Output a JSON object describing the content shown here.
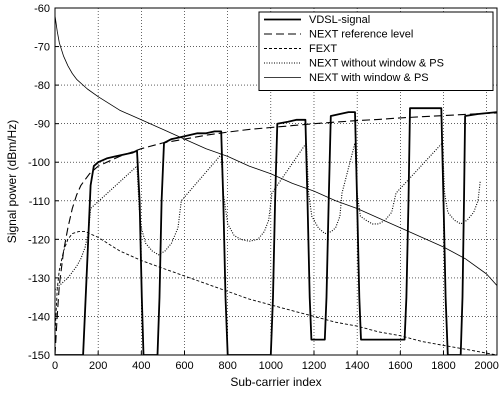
{
  "chart_data": {
    "type": "line",
    "title": "",
    "xlabel": "Sub-carrier index",
    "ylabel": "Signal power (dBm/Hz)",
    "xlim": [
      0,
      2048
    ],
    "ylim": [
      -150,
      -60
    ],
    "x_ticks": [
      0,
      200,
      400,
      600,
      800,
      1000,
      1200,
      1400,
      1600,
      1800,
      2000
    ],
    "y_ticks": [
      -150,
      -140,
      -130,
      -120,
      -110,
      -100,
      -90,
      -80,
      -70,
      -60
    ],
    "grid": true,
    "legend_position": "top-right",
    "series": [
      {
        "name": "VDSL-signal",
        "style": "solid-thick",
        "points": [
          [
            0,
            -150
          ],
          [
            130,
            -150
          ],
          [
            150,
            -125
          ],
          [
            165,
            -106
          ],
          [
            180,
            -101
          ],
          [
            200,
            -100
          ],
          [
            240,
            -99
          ],
          [
            280,
            -98.5
          ],
          [
            320,
            -98
          ],
          [
            360,
            -97.5
          ],
          [
            380,
            -97
          ],
          [
            392,
            -110
          ],
          [
            402,
            -135
          ],
          [
            410,
            -150
          ],
          [
            475,
            -150
          ],
          [
            484,
            -135
          ],
          [
            494,
            -110
          ],
          [
            505,
            -95
          ],
          [
            540,
            -94
          ],
          [
            580,
            -93.5
          ],
          [
            620,
            -93
          ],
          [
            660,
            -92.5
          ],
          [
            700,
            -92.5
          ],
          [
            740,
            -92
          ],
          [
            770,
            -92
          ],
          [
            780,
            -110
          ],
          [
            790,
            -135
          ],
          [
            800,
            -150
          ],
          [
            1000,
            -150
          ],
          [
            1010,
            -135
          ],
          [
            1020,
            -110
          ],
          [
            1030,
            -90
          ],
          [
            1080,
            -89.5
          ],
          [
            1120,
            -89
          ],
          [
            1160,
            -89
          ],
          [
            1170,
            -110
          ],
          [
            1180,
            -135
          ],
          [
            1188,
            -146
          ],
          [
            1250,
            -146
          ],
          [
            1258,
            -135
          ],
          [
            1268,
            -110
          ],
          [
            1278,
            -88
          ],
          [
            1320,
            -87.5
          ],
          [
            1360,
            -87
          ],
          [
            1390,
            -87
          ],
          [
            1400,
            -110
          ],
          [
            1410,
            -135
          ],
          [
            1418,
            -146
          ],
          [
            1620,
            -146
          ],
          [
            1628,
            -135
          ],
          [
            1638,
            -110
          ],
          [
            1645,
            -86
          ],
          [
            1700,
            -86
          ],
          [
            1760,
            -86
          ],
          [
            1790,
            -86
          ],
          [
            1800,
            -110
          ],
          [
            1810,
            -135
          ],
          [
            1820,
            -150
          ],
          [
            1880,
            -150
          ],
          [
            1888,
            -135
          ],
          [
            1895,
            -110
          ],
          [
            1900,
            -88
          ],
          [
            1960,
            -87.5
          ],
          [
            2048,
            -87
          ]
        ]
      },
      {
        "name": "NEXT reference level",
        "style": "dashed",
        "points": [
          [
            0,
            -150
          ],
          [
            10,
            -140
          ],
          [
            20,
            -132
          ],
          [
            40,
            -123
          ],
          [
            60,
            -117
          ],
          [
            80,
            -112
          ],
          [
            100,
            -108.5
          ],
          [
            120,
            -106
          ],
          [
            160,
            -103
          ],
          [
            200,
            -101
          ],
          [
            300,
            -98.5
          ],
          [
            400,
            -96.5
          ],
          [
            500,
            -95
          ],
          [
            600,
            -94
          ],
          [
            700,
            -93
          ],
          [
            800,
            -92.2
          ],
          [
            900,
            -91.5
          ],
          [
            1000,
            -91
          ],
          [
            1100,
            -90.5
          ],
          [
            1200,
            -90
          ],
          [
            1300,
            -89.6
          ],
          [
            1400,
            -89.2
          ],
          [
            1500,
            -88.9
          ],
          [
            1600,
            -88.5
          ],
          [
            1700,
            -88.2
          ],
          [
            1800,
            -87.9
          ],
          [
            1900,
            -87.6
          ],
          [
            2000,
            -87.3
          ],
          [
            2048,
            -87.2
          ]
        ]
      },
      {
        "name": "FEXT",
        "style": "short-dashed",
        "points": [
          [
            0,
            -145
          ],
          [
            10,
            -133
          ],
          [
            20,
            -128
          ],
          [
            40,
            -123
          ],
          [
            60,
            -120
          ],
          [
            80,
            -118.5
          ],
          [
            110,
            -118
          ],
          [
            140,
            -118
          ],
          [
            200,
            -119.5
          ],
          [
            300,
            -123
          ],
          [
            400,
            -125.5
          ],
          [
            500,
            -127.5
          ],
          [
            600,
            -129.5
          ],
          [
            700,
            -131.5
          ],
          [
            800,
            -133.5
          ],
          [
            900,
            -135.5
          ],
          [
            1000,
            -137
          ],
          [
            1100,
            -138.5
          ],
          [
            1200,
            -140
          ],
          [
            1300,
            -141.5
          ],
          [
            1400,
            -142.5
          ],
          [
            1500,
            -144
          ],
          [
            1600,
            -145
          ],
          [
            1700,
            -146.5
          ],
          [
            1800,
            -147.5
          ],
          [
            1900,
            -148.5
          ],
          [
            2000,
            -149.5
          ],
          [
            2048,
            -150
          ]
        ]
      },
      {
        "name": "NEXT without window & PS",
        "style": "dotted",
        "points": [
          [
            0,
            -133
          ],
          [
            20,
            -132
          ],
          [
            40,
            -131
          ],
          [
            60,
            -130
          ],
          [
            80,
            -128.5
          ],
          [
            100,
            -127
          ],
          [
            120,
            -125
          ],
          [
            140,
            -122
          ],
          [
            155,
            -118
          ],
          [
            165,
            -112
          ],
          [
            380,
            -101
          ],
          [
            390,
            -112
          ],
          [
            400,
            -117
          ],
          [
            420,
            -121
          ],
          [
            450,
            -123
          ],
          [
            480,
            -124
          ],
          [
            510,
            -123
          ],
          [
            540,
            -121
          ],
          [
            570,
            -117
          ],
          [
            585,
            -110
          ],
          [
            770,
            -98
          ],
          [
            780,
            -108
          ],
          [
            800,
            -116
          ],
          [
            830,
            -119
          ],
          [
            860,
            -120
          ],
          [
            900,
            -120.5
          ],
          [
            940,
            -120
          ],
          [
            970,
            -118
          ],
          [
            990,
            -115
          ],
          [
            1005,
            -108
          ],
          [
            1165,
            -95
          ],
          [
            1175,
            -108
          ],
          [
            1190,
            -114
          ],
          [
            1220,
            -117
          ],
          [
            1250,
            -118.5
          ],
          [
            1280,
            -118
          ],
          [
            1300,
            -117
          ],
          [
            1320,
            -114
          ],
          [
            1330,
            -108
          ],
          [
            1390,
            -95
          ],
          [
            1400,
            -108
          ],
          [
            1415,
            -114
          ],
          [
            1440,
            -115
          ],
          [
            1470,
            -116
          ],
          [
            1500,
            -116
          ],
          [
            1530,
            -115
          ],
          [
            1560,
            -113
          ],
          [
            1580,
            -108
          ],
          [
            1795,
            -95
          ],
          [
            1805,
            -108
          ],
          [
            1820,
            -113
          ],
          [
            1850,
            -115
          ],
          [
            1880,
            -116
          ],
          [
            1910,
            -115
          ],
          [
            1940,
            -113
          ],
          [
            1960,
            -110
          ],
          [
            1970,
            -105
          ]
        ]
      },
      {
        "name": "NEXT with window & PS",
        "style": "solid-thin",
        "points": [
          [
            0,
            -62
          ],
          [
            10,
            -66
          ],
          [
            20,
            -69
          ],
          [
            40,
            -72.5
          ],
          [
            60,
            -75
          ],
          [
            80,
            -77
          ],
          [
            100,
            -78.5
          ],
          [
            150,
            -81
          ],
          [
            200,
            -83
          ],
          [
            300,
            -86.5
          ],
          [
            400,
            -89
          ],
          [
            500,
            -91.5
          ],
          [
            600,
            -94
          ],
          [
            700,
            -96.5
          ],
          [
            800,
            -98.5
          ],
          [
            900,
            -101
          ],
          [
            1000,
            -103
          ],
          [
            1100,
            -105.5
          ],
          [
            1200,
            -107.5
          ],
          [
            1300,
            -110
          ],
          [
            1400,
            -112
          ],
          [
            1500,
            -114.5
          ],
          [
            1600,
            -117
          ],
          [
            1700,
            -119.5
          ],
          [
            1800,
            -122
          ],
          [
            1900,
            -125
          ],
          [
            2000,
            -129
          ],
          [
            2048,
            -132
          ]
        ]
      }
    ]
  }
}
